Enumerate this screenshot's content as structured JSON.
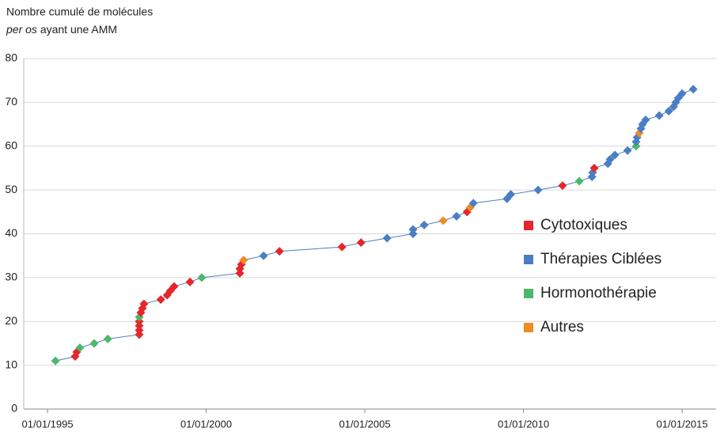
{
  "chart_data": {
    "type": "scatter-line",
    "title": "Nombre cumulé de molécules",
    "subtitle": {
      "italic": "per os",
      "rest": "ayant une AMM"
    },
    "x": [
      1995.25,
      1995.87,
      1995.92,
      1996.02,
      1996.47,
      1996.9,
      1997.89,
      1997.89,
      1997.89,
      1997.89,
      1997.89,
      1997.94,
      1997.99,
      1998.04,
      1998.57,
      1998.77,
      1998.87,
      1998.99,
      1999.49,
      1999.86,
      2001.06,
      2001.06,
      2001.11,
      2001.18,
      2001.81,
      2002.31,
      2004.28,
      2004.88,
      2005.7,
      2006.52,
      2006.52,
      2006.87,
      2007.47,
      2007.89,
      2008.22,
      2008.32,
      2008.42,
      2009.48,
      2009.6,
      2010.46,
      2011.23,
      2011.76,
      2012.16,
      2012.18,
      2012.23,
      2012.66,
      2012.73,
      2012.88,
      2013.28,
      2013.55,
      2013.55,
      2013.58,
      2013.65,
      2013.7,
      2013.75,
      2013.85,
      2014.28,
      2014.58,
      2014.73,
      2014.8,
      2014.88,
      2015.0,
      2015.35
    ],
    "values": [
      11,
      12,
      13,
      14,
      15,
      16,
      17,
      18,
      19,
      20,
      21,
      22,
      23,
      24,
      25,
      26,
      27,
      28,
      29,
      30,
      31,
      32,
      33,
      34,
      35,
      36,
      37,
      38,
      39,
      40,
      41,
      42,
      43,
      44,
      45,
      46,
      47,
      48,
      49,
      50,
      51,
      52,
      53,
      54,
      55,
      56,
      57,
      58,
      59,
      60,
      61,
      62,
      63,
      64,
      65,
      66,
      67,
      68,
      69,
      70,
      71,
      72,
      73
    ],
    "groups": [
      2,
      0,
      0,
      2,
      2,
      2,
      0,
      0,
      0,
      0,
      2,
      0,
      0,
      0,
      0,
      0,
      0,
      0,
      0,
      2,
      0,
      0,
      0,
      3,
      1,
      0,
      0,
      0,
      1,
      1,
      1,
      1,
      3,
      1,
      0,
      3,
      1,
      1,
      1,
      1,
      0,
      2,
      1,
      1,
      0,
      1,
      1,
      1,
      1,
      2,
      1,
      1,
      3,
      1,
      1,
      1,
      1,
      1,
      1,
      1,
      1,
      1,
      1
    ],
    "series": [
      {
        "name": "Cytotoxiques",
        "color": "#e5262b"
      },
      {
        "name": "Thérapies Ciblées",
        "color": "#4a7ec4"
      },
      {
        "name": "Hormonothérapie",
        "color": "#4cb86a"
      },
      {
        "name": "Autres",
        "color": "#f08a24"
      }
    ],
    "line_color": "#4a7ec4",
    "xlim": [
      1994.25,
      2016.07
    ],
    "xticks": [
      {
        "value": 1995,
        "label": "01/01/1995"
      },
      {
        "value": 2000,
        "label": "01/01/2000"
      },
      {
        "value": 2005,
        "label": "01/01/2005"
      },
      {
        "value": 2010,
        "label": "01/01/2010"
      },
      {
        "value": 2015,
        "label": "01/01/2015"
      }
    ],
    "ylim": [
      0,
      80
    ],
    "yticks": [
      0,
      10,
      20,
      30,
      40,
      50,
      60,
      70,
      80
    ],
    "grid": true
  }
}
